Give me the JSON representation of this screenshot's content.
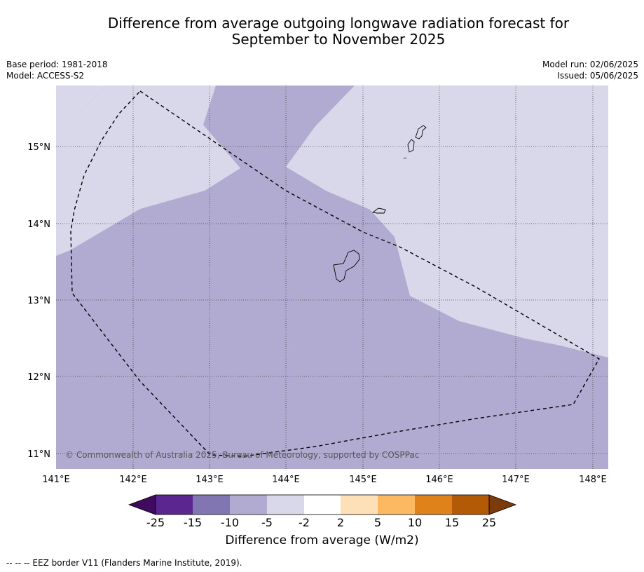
{
  "header": {
    "title_line1": "Difference from average outgoing longwave radiation forecast for",
    "title_line2": "September to November 2025",
    "base_period": "Base period: 1981-2018",
    "model": "Model: ACCESS-S2",
    "model_run": "Model run: 02/06/2025",
    "issued": "Issued: 05/06/2025"
  },
  "map": {
    "lon_range": [
      141.0,
      148.2
    ],
    "lat_range": [
      10.8,
      15.8
    ],
    "lon_ticks": [
      "141°E",
      "142°E",
      "143°E",
      "144°E",
      "145°E",
      "146°E",
      "147°E",
      "148°E"
    ],
    "lat_ticks": [
      "15°N",
      "14°N",
      "13°N",
      "12°N",
      "11°N"
    ],
    "copyright": "© Commonwealth of Australia 2025, Bureau of Meteorology, supported by COSPPac",
    "colors": {
      "band_minus10_minus5": "#b1abd1",
      "band_minus5_minus2": "#d8d8ea",
      "eez_line": "#000000",
      "grid": "#444444"
    },
    "eez_border_style": "dashed"
  },
  "colorbar": {
    "tick_labels": [
      "-25",
      "-15",
      "-10",
      "-5",
      "-2",
      "2",
      "5",
      "10",
      "15",
      "25"
    ],
    "colors": [
      "#3f0b5e",
      "#5a2690",
      "#8176b2",
      "#b1abd1",
      "#d8d8ea",
      "#ffffff",
      "#fde0b5",
      "#fdb862",
      "#e0821a",
      "#b35a06",
      "#7d3a0a"
    ],
    "label": "Difference from average (W/m2)"
  },
  "footnote": "--  --  -- EEZ border V11 (Flanders Marine Institute, 2019)."
}
